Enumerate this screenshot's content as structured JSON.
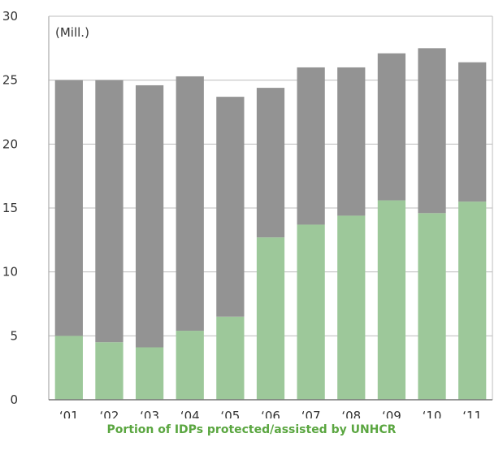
{
  "chart_data": {
    "type": "bar",
    "stacked": true,
    "unit_label": "(Mill.)",
    "categories": [
      "‘01",
      "‘02",
      "‘03",
      "‘04",
      "‘05",
      "‘06",
      "‘07",
      "‘08",
      "‘09",
      "‘10",
      "‘11"
    ],
    "totals": [
      25.0,
      25.0,
      24.6,
      25.3,
      23.7,
      24.4,
      26.0,
      26.0,
      27.1,
      27.5,
      26.4
    ],
    "series": [
      {
        "name": "Portion of IDPs protected/assisted by UNHCR",
        "color": "#9dc89a",
        "values": [
          5.0,
          4.5,
          4.1,
          5.4,
          6.5,
          12.7,
          13.7,
          14.4,
          15.6,
          14.6,
          15.5
        ]
      },
      {
        "name": "",
        "color": "#939393",
        "values": [
          20.0,
          20.5,
          20.5,
          19.9,
          17.2,
          11.7,
          12.3,
          11.6,
          11.5,
          12.9,
          10.9
        ]
      }
    ],
    "ylim": [
      0,
      30
    ],
    "yticks": [
      0,
      5,
      10,
      15,
      20,
      25,
      30
    ],
    "grid": true,
    "legend_caption_color": "#5aa640"
  }
}
